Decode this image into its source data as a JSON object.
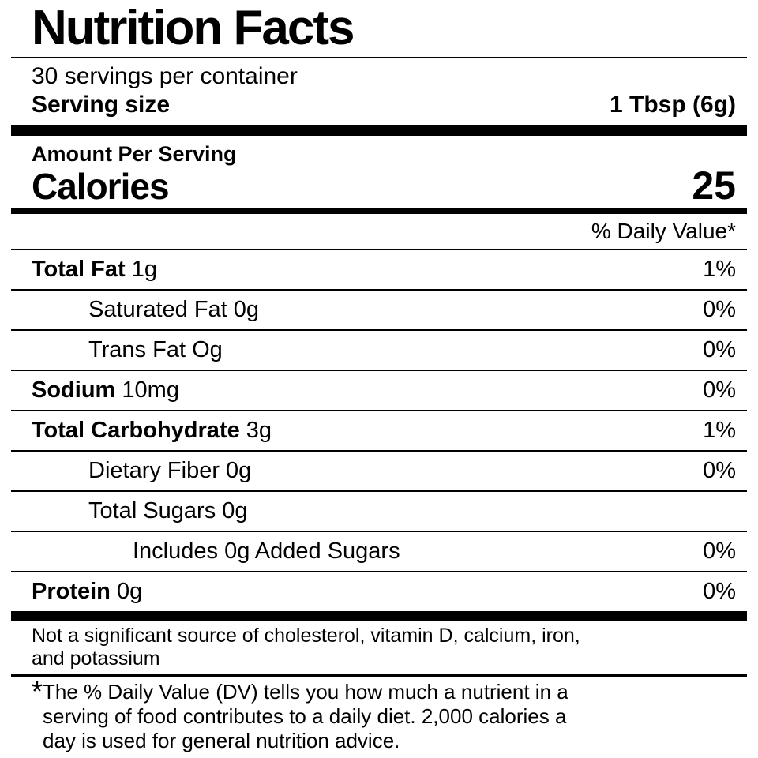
{
  "label": {
    "title": "Nutrition Facts",
    "servings_per_container": "30 servings per container",
    "serving_size_label": "Serving size",
    "serving_size_value": "1 Tbsp (6g)",
    "amount_per_serving": "Amount Per Serving",
    "calories_label": "Calories",
    "calories_value": "25",
    "daily_value_header": "% Daily Value*",
    "rows": [
      {
        "name": "Total Fat",
        "amount": "1g",
        "dv": "1%",
        "bold": true,
        "indent": 0
      },
      {
        "name": "Saturated Fat",
        "amount": "0g",
        "dv": "0%",
        "bold": false,
        "indent": 1
      },
      {
        "name": "Trans Fat",
        "amount": "Og",
        "dv": "0%",
        "bold": false,
        "indent": 1
      },
      {
        "name": "Sodium",
        "amount": "10mg",
        "dv": "0%",
        "bold": true,
        "indent": 0
      },
      {
        "name": "Total Carbohydrate",
        "amount": "3g",
        "dv": "1%",
        "bold": true,
        "indent": 0
      },
      {
        "name": "Dietary Fiber",
        "amount": "0g",
        "dv": "0%",
        "bold": false,
        "indent": 1
      },
      {
        "name": "Total Sugars",
        "amount": "0g",
        "dv": "",
        "bold": false,
        "indent": 1
      },
      {
        "name": "Includes 0g Added Sugars",
        "amount": "",
        "dv": "0%",
        "bold": false,
        "indent": 2
      },
      {
        "name": "Protein",
        "amount": "0g",
        "dv": "0%",
        "bold": true,
        "indent": 0
      }
    ],
    "not_significant_note": "Not a significant source of cholesterol, vitamin D, calcium, iron, and potassium",
    "footnote_asterisk": "*",
    "footnote_text": "The % Daily Value (DV) tells you how much a nutrient in a serving of food contributes to a daily diet. 2,000 calories a day is used for general nutrition advice.",
    "colors": {
      "text": "#000000",
      "background": "#ffffff"
    }
  }
}
